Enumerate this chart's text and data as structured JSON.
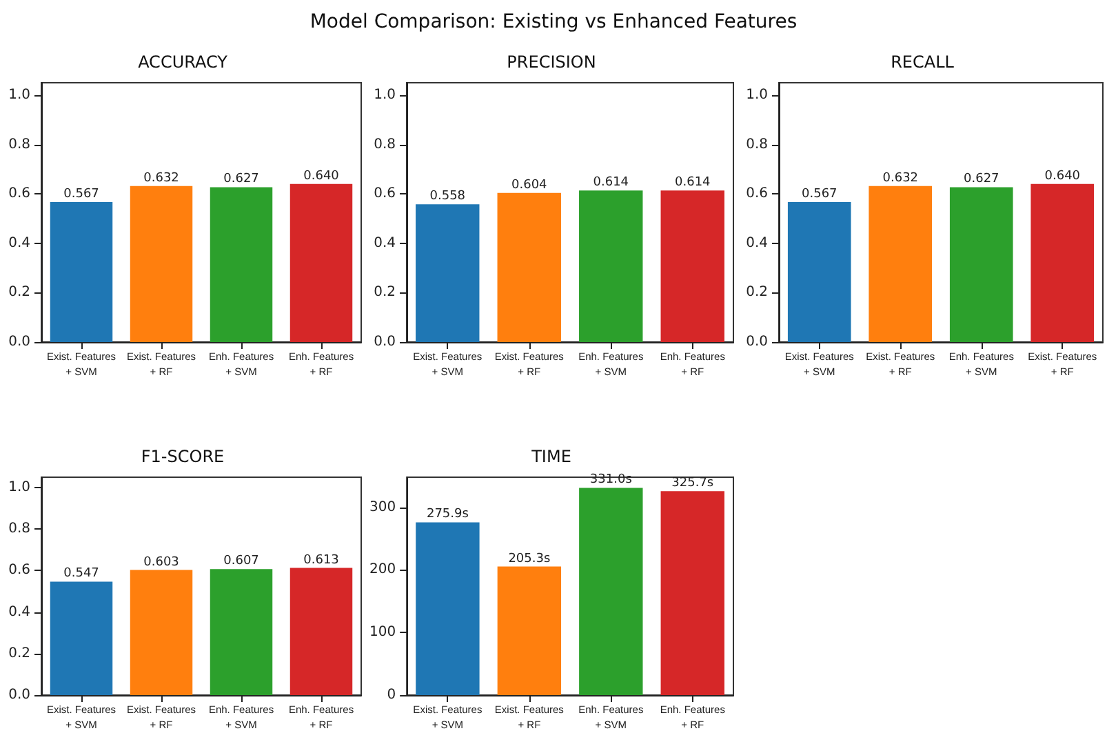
{
  "chart_data": [
    {
      "type": "other",
      "title": "Model Comparison: Existing vs Enhanced Features"
    },
    {
      "type": "bar",
      "title": "ACCURACY",
      "categories": [
        "Exist. Features\n+ SVM",
        "Exist. Features\n+ RF",
        "Enh. Features\n+ SVM",
        "Enh. Features\n+ RF"
      ],
      "values": [
        0.567,
        0.632,
        0.627,
        0.64
      ],
      "value_labels": [
        "0.567",
        "0.632",
        "0.627",
        "0.640"
      ],
      "colors": [
        "#1f77b4",
        "#ff7f0e",
        "#2ca02c",
        "#d62728"
      ],
      "ylim": [
        0,
        1.05
      ],
      "yticks": [
        "0.0",
        0.2,
        0.4,
        0.6,
        0.8,
        "1.0"
      ]
    },
    {
      "type": "bar",
      "title": "PRECISION",
      "categories": [
        "Exist. Features\n+ SVM",
        "Exist. Features\n+ RF",
        "Enh. Features\n+ SVM",
        "Enh. Features\n+ RF"
      ],
      "values": [
        0.558,
        0.604,
        0.614,
        0.614
      ],
      "value_labels": [
        "0.558",
        "0.604",
        "0.614",
        "0.614"
      ],
      "colors": [
        "#1f77b4",
        "#ff7f0e",
        "#2ca02c",
        "#d62728"
      ],
      "ylim": [
        0,
        1.05
      ],
      "yticks": [
        "0.0",
        0.2,
        0.4,
        0.6,
        0.8,
        "1.0"
      ]
    },
    {
      "type": "bar",
      "title": "RECALL",
      "categories": [
        "Exist. Features\n+ SVM",
        "Exist. Features\n+ RF",
        "Enh. Features\n+ SVM",
        "Exist. Features\n+ RF"
      ],
      "values": [
        0.567,
        0.632,
        0.627,
        0.64
      ],
      "value_labels": [
        "0.567",
        "0.632",
        "0.627",
        "0.640"
      ],
      "colors": [
        "#1f77b4",
        "#ff7f0e",
        "#2ca02c",
        "#d62728"
      ],
      "ylim": [
        0,
        1.05
      ],
      "yticks": [
        "0.0",
        0.2,
        0.4,
        0.6,
        0.8,
        "1.0"
      ]
    },
    {
      "type": "bar",
      "title": "F1-SCORE",
      "categories": [
        "Exist. Features\n+ SVM",
        "Exist. Features\n+ RF",
        "Enh. Features\n+ SVM",
        "Enh. Features\n+ RF"
      ],
      "values": [
        0.547,
        0.603,
        0.607,
        0.613
      ],
      "value_labels": [
        "0.547",
        "0.603",
        "0.607",
        "0.613"
      ],
      "colors": [
        "#1f77b4",
        "#ff7f0e",
        "#2ca02c",
        "#d62728"
      ],
      "ylim": [
        0,
        1.05
      ],
      "yticks": [
        "0.0",
        0.2,
        0.4,
        0.6,
        0.8,
        "1.0"
      ]
    },
    {
      "type": "bar",
      "title": "TIME",
      "categories": [
        "Exist. Features\n+ SVM",
        "Exist. Features\n+ RF",
        "Enh. Features\n+ SVM",
        "Enh. Features\n+ RF"
      ],
      "values": [
        275.9,
        205.3,
        331.0,
        325.7
      ],
      "value_labels": [
        "275.9s",
        "205.3s",
        "331.0s",
        "325.7s"
      ],
      "colors": [
        "#1f77b4",
        "#ff7f0e",
        "#2ca02c",
        "#d62728"
      ],
      "ylim": [
        0,
        348
      ],
      "yticks": [
        0,
        100,
        200,
        300
      ]
    }
  ]
}
